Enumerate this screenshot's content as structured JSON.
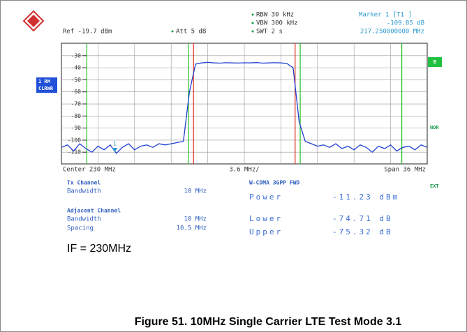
{
  "header": {
    "ref": "Ref -19.7 dBm",
    "att": "Att  5 dB",
    "rbw": "RBW 30 kHz",
    "vbw": "VBW 300 kHz",
    "swt": "SWT 2 s",
    "marker_title": "Marker 1 [T1 ]",
    "marker_level": "-109.85 dB",
    "marker_freq": "217.250000000 MHz"
  },
  "side": {
    "trace": "1 RM",
    "mode": "CLRWR",
    "b": "B",
    "nor": "NOR",
    "ext": "EXT"
  },
  "footer": {
    "center": "Center 230 MHz",
    "div": "3.6 MHz/",
    "span": "Span 36 MHz"
  },
  "table": {
    "tx_channel": "Tx Channel",
    "tx_bw_label": "Bandwidth",
    "tx_bw": "10 MHz",
    "adjacent": "Adjacent Channel",
    "adj_bw_label": "Bandwidth",
    "adj_bw": "10 MHz",
    "spacing_label": "Spacing",
    "spacing": "10.5 MHz",
    "standard": "W-CDMA 3GPP FWD",
    "results": [
      {
        "label": "Power",
        "value": "-11.23 dBm"
      },
      {
        "label": "Lower",
        "value": "-74.71 dB"
      },
      {
        "label": "Upper",
        "value": "-75.32 dB"
      }
    ]
  },
  "note": "IF = 230MHz",
  "caption": "Figure 51. 10MHz Single Carrier LTE Test Mode 3.1",
  "chart_data": {
    "type": "line",
    "xlim": [
      212,
      248
    ],
    "ylim": [
      -119.7,
      -19.7
    ],
    "yticks": [
      -30,
      -40,
      -50,
      -60,
      -70,
      -80,
      -90,
      -100,
      -110
    ],
    "grid": true,
    "x": [
      212,
      212.6,
      213.2,
      213.8,
      214.4,
      215,
      215.6,
      216.2,
      216.8,
      217.4,
      218,
      218.6,
      219.2,
      219.8,
      220.4,
      221,
      221.6,
      222.2,
      222.8,
      223.4,
      224,
      224.6,
      225.2,
      225.8,
      226.4,
      227,
      227.6,
      228.2,
      228.8,
      229.4,
      230,
      230.6,
      231.2,
      231.8,
      232.4,
      233,
      233.6,
      234.2,
      234.8,
      235.4,
      236,
      236.6,
      237.2,
      237.8,
      238.4,
      239,
      239.6,
      240.2,
      240.8,
      241.4,
      242,
      242.6,
      243.2,
      243.8,
      244.4,
      245,
      245.6,
      246.2,
      246.8,
      247.4,
      248
    ],
    "series": [
      {
        "color": "#1f3fd0",
        "values": [
          -106,
          -104,
          -109,
          -103,
          -107,
          -110,
          -105,
          -108,
          -104,
          -111,
          -106,
          -103,
          -108,
          -105,
          -104,
          -106,
          -103,
          -104,
          -103,
          -102,
          -101,
          -60,
          -37,
          -36,
          -35.5,
          -36,
          -36.2,
          -35.8,
          -36,
          -36.1,
          -35.9,
          -36,
          -35.7,
          -36.2,
          -36,
          -35.8,
          -36,
          -36.5,
          -40,
          -85,
          -101,
          -103,
          -105,
          -104,
          -106,
          -103,
          -107,
          -105,
          -108,
          -104,
          -106,
          -110,
          -105,
          -107,
          -104,
          -109,
          -106,
          -105,
          -108,
          -104,
          -106
        ]
      }
    ],
    "channel_edges": [
      225,
      235
    ],
    "channel_color": "#e03020",
    "adjacent_edges": [
      214.5,
      224.5,
      235.5,
      245.5
    ],
    "adjacent_color": "#22c022",
    "marker": {
      "x": 217.25,
      "y": -109.85,
      "label": "1",
      "color": "#2a9ad0"
    }
  }
}
